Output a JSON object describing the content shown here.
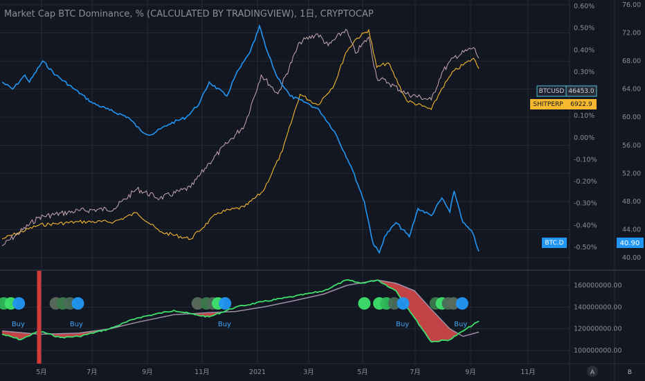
{
  "title": "Market Cap BTC Dominance, % (CALCULATED BY TRADINGVIEW), 1日, CRYPTOCAP",
  "colors": {
    "background": "#131722",
    "grid": "#242833",
    "btc_d": "#2196f3",
    "btcusd": "#c9a9b0",
    "shitperp": "#f5b82e",
    "ma_fast": "#3ee06b",
    "ma_slow": "#9e8fa6",
    "fill_negative": "#e04b4b",
    "signal_red": "#d53a3a"
  },
  "chart_data": [
    {
      "type": "line",
      "title": "Market Cap BTC Dominance, % (CALCULATED BY TRADINGVIEW), 1日, CRYPTOCAP",
      "x_ticks": [
        "5月",
        "7月",
        "9月",
        "11月",
        "2021",
        "3月",
        "5月",
        "7月",
        "9月",
        "11月"
      ],
      "left_axis_ticks": [
        "76.00",
        "72.00",
        "68.00",
        "64.00",
        "60.00",
        "56.00",
        "52.00",
        "48.00",
        "44.00",
        "40.00"
      ],
      "right_axis_ticks": [
        "0.60%",
        "0.50%",
        "0.40%",
        "0.30%",
        "0.20%",
        "0.10%",
        "0.00%",
        "-0.10%",
        "-0.20%",
        "-0.30%",
        "-0.40%",
        "-0.50%"
      ],
      "series": [
        {
          "name": "BTC.D",
          "last_value": "40.90",
          "points": [
            [
              "2020-03-20",
              65.0
            ],
            [
              "2020-04-01",
              64.0
            ],
            [
              "2020-04-15",
              66.0
            ],
            [
              "2020-04-20",
              65.0
            ],
            [
              "2020-05-05",
              68.0
            ],
            [
              "2020-05-20",
              66.0
            ],
            [
              "2020-06-10",
              64.0
            ],
            [
              "2020-07-01",
              62.0
            ],
            [
              "2020-07-20",
              61.0
            ],
            [
              "2020-08-10",
              60.0
            ],
            [
              "2020-08-25",
              58.0
            ],
            [
              "2020-09-05",
              57.5
            ],
            [
              "2020-09-25",
              59.0
            ],
            [
              "2020-10-15",
              60.0
            ],
            [
              "2020-10-30",
              62.0
            ],
            [
              "2020-11-10",
              65.0
            ],
            [
              "2020-11-30",
              63.0
            ],
            [
              "2020-12-10",
              66.0
            ],
            [
              "2020-12-25",
              69.0
            ],
            [
              "2021-01-01",
              71.0
            ],
            [
              "2021-01-06",
              73.0
            ],
            [
              "2021-01-13",
              70.0
            ],
            [
              "2021-01-25",
              66.0
            ],
            [
              "2021-02-10",
              63.0
            ],
            [
              "2021-03-01",
              62.0
            ],
            [
              "2021-03-15",
              61.0
            ],
            [
              "2021-04-01",
              58.0
            ],
            [
              "2021-04-20",
              53.0
            ],
            [
              "2021-05-05",
              48.0
            ],
            [
              "2021-05-15",
              42.0
            ],
            [
              "2021-05-22",
              40.7
            ],
            [
              "2021-05-28",
              43.0
            ],
            [
              "2021-06-10",
              45.0
            ],
            [
              "2021-06-25",
              43.0
            ],
            [
              "2021-07-05",
              47.0
            ],
            [
              "2021-07-20",
              46.0
            ],
            [
              "2021-08-01",
              48.5
            ],
            [
              "2021-08-10",
              46.5
            ],
            [
              "2021-08-15",
              49.5
            ],
            [
              "2021-08-25",
              45.0
            ],
            [
              "2021-09-05",
              43.5
            ],
            [
              "2021-09-12",
              40.9
            ]
          ]
        },
        {
          "name": "BTCUSD",
          "last_value": "46453.0",
          "points": [
            [
              "2020-03-20",
              6500
            ],
            [
              "2020-05-01",
              8800
            ],
            [
              "2020-06-15",
              9400
            ],
            [
              "2020-07-25",
              9600
            ],
            [
              "2020-08-20",
              11800
            ],
            [
              "2020-09-15",
              10700
            ],
            [
              "2020-10-20",
              12000
            ],
            [
              "2020-11-10",
              15500
            ],
            [
              "2020-11-30",
              19000
            ],
            [
              "2020-12-20",
              23000
            ],
            [
              "2021-01-08",
              39000
            ],
            [
              "2021-01-27",
              32000
            ],
            [
              "2021-02-21",
              55000
            ],
            [
              "2021-03-13",
              60000
            ],
            [
              "2021-03-25",
              53000
            ],
            [
              "2021-04-14",
              63000
            ],
            [
              "2021-04-25",
              49000
            ],
            [
              "2021-05-10",
              58000
            ],
            [
              "2021-05-19",
              38000
            ],
            [
              "2021-06-01",
              36000
            ],
            [
              "2021-06-22",
              32000
            ],
            [
              "2021-07-20",
              30000
            ],
            [
              "2021-08-01",
              40000
            ],
            [
              "2021-08-15",
              47000
            ],
            [
              "2021-09-06",
              52000
            ],
            [
              "2021-09-12",
              46453
            ]
          ]
        },
        {
          "name": "SHITPERP",
          "last_value": "6922.9",
          "points": [
            [
              "2020-03-20",
              1500
            ],
            [
              "2020-05-01",
              1700
            ],
            [
              "2020-06-15",
              1750
            ],
            [
              "2020-07-25",
              1750
            ],
            [
              "2020-08-20",
              1900
            ],
            [
              "2020-09-15",
              1600
            ],
            [
              "2020-10-20",
              1500
            ],
            [
              "2020-11-20",
              1900
            ],
            [
              "2020-12-20",
              2000
            ],
            [
              "2021-01-10",
              2300
            ],
            [
              "2021-02-01",
              3300
            ],
            [
              "2021-02-21",
              5500
            ],
            [
              "2021-03-13",
              5000
            ],
            [
              "2021-04-01",
              6000
            ],
            [
              "2021-04-14",
              8000
            ],
            [
              "2021-04-25",
              9000
            ],
            [
              "2021-05-10",
              9800
            ],
            [
              "2021-05-19",
              7000
            ],
            [
              "2021-06-01",
              7300
            ],
            [
              "2021-06-22",
              5200
            ],
            [
              "2021-07-20",
              4800
            ],
            [
              "2021-08-01",
              5800
            ],
            [
              "2021-08-15",
              6800
            ],
            [
              "2021-09-06",
              7600
            ],
            [
              "2021-09-12",
              6922.9
            ]
          ]
        }
      ]
    },
    {
      "type": "line",
      "y_ticks": [
        "160000000.00",
        "140000000.00",
        "120000000.00",
        "100000000.00"
      ],
      "series": [
        {
          "points": [
            [
              "2020-03-20",
              115000000
            ],
            [
              "2020-04-10",
              110000000
            ],
            [
              "2020-05-01",
              118000000
            ],
            [
              "2020-05-25",
              112000000
            ],
            [
              "2020-06-15",
              113000000
            ],
            [
              "2020-07-20",
              120000000
            ],
            [
              "2020-08-20",
              130000000
            ],
            [
              "2020-10-01",
              137000000
            ],
            [
              "2020-10-25",
              133000000
            ],
            [
              "2020-11-10",
              131000000
            ],
            [
              "2020-12-10",
              140000000
            ],
            [
              "2021-01-10",
              145000000
            ],
            [
              "2021-02-15",
              150000000
            ],
            [
              "2021-03-20",
              155000000
            ],
            [
              "2021-04-15",
              165000000
            ],
            [
              "2021-05-01",
              162000000
            ],
            [
              "2021-05-20",
              165000000
            ],
            [
              "2021-06-10",
              155000000
            ],
            [
              "2021-07-01",
              130000000
            ],
            [
              "2021-07-20",
              108000000
            ],
            [
              "2021-08-10",
              110000000
            ],
            [
              "2021-08-25",
              118000000
            ],
            [
              "2021-09-12",
              127000000
            ]
          ]
        },
        {
          "points": [
            [
              "2020-03-20",
              118000000
            ],
            [
              "2020-05-01",
              115000000
            ],
            [
              "2020-06-15",
              116000000
            ],
            [
              "2020-07-20",
              120000000
            ],
            [
              "2020-08-20",
              126000000
            ],
            [
              "2020-10-01",
              133000000
            ],
            [
              "2020-11-10",
              135000000
            ],
            [
              "2020-12-10",
              136000000
            ],
            [
              "2021-01-10",
              140000000
            ],
            [
              "2021-02-15",
              146000000
            ],
            [
              "2021-03-20",
              152000000
            ],
            [
              "2021-04-15",
              160000000
            ],
            [
              "2021-05-20",
              165000000
            ],
            [
              "2021-06-10",
              162000000
            ],
            [
              "2021-07-01",
              155000000
            ],
            [
              "2021-07-20",
              138000000
            ],
            [
              "2021-08-10",
              120000000
            ],
            [
              "2021-08-25",
              113000000
            ],
            [
              "2021-09-12",
              117000000
            ]
          ]
        }
      ],
      "signals": [
        {
          "label": "Buy",
          "date": "2020-04-05"
        },
        {
          "label": "Buy",
          "date": "2020-06-10"
        },
        {
          "label": "Buy",
          "date": "2020-11-25"
        },
        {
          "label": "Buy",
          "date": "2021-06-15"
        },
        {
          "label": "Buy",
          "date": "2021-08-20"
        }
      ],
      "dots": [
        {
          "date": "2020-03-10",
          "color": "#5a6b5e"
        },
        {
          "date": "2020-03-22",
          "color": "#2fb85c"
        },
        {
          "date": "2020-03-30",
          "color": "#3ee06b"
        },
        {
          "date": "2020-04-08",
          "color": "#2196f3"
        },
        {
          "date": "2020-05-20",
          "color": "#5a6b5e"
        },
        {
          "date": "2020-05-28",
          "color": "#3a7a4c"
        },
        {
          "date": "2020-06-05",
          "color": "#4a6a58"
        },
        {
          "date": "2020-06-14",
          "color": "#2196f3"
        },
        {
          "date": "2020-10-28",
          "color": "#5a6b5e"
        },
        {
          "date": "2020-11-07",
          "color": "#3a7a4c"
        },
        {
          "date": "2020-11-14",
          "color": "#4a6a58"
        },
        {
          "date": "2020-11-20",
          "color": "#3ee06b"
        },
        {
          "date": "2020-11-28",
          "color": "#2196f3"
        },
        {
          "date": "2021-05-05",
          "color": "#3ee06b"
        },
        {
          "date": "2021-05-22",
          "color": "#3ee06b"
        },
        {
          "date": "2021-05-30",
          "color": "#2fb85c"
        },
        {
          "date": "2021-06-08",
          "color": "#4a6a58"
        },
        {
          "date": "2021-06-18",
          "color": "#2196f3"
        },
        {
          "date": "2021-07-25",
          "color": "#3a7a4c"
        },
        {
          "date": "2021-08-01",
          "color": "#3ee06b"
        },
        {
          "date": "2021-08-08",
          "color": "#4a6a58"
        },
        {
          "date": "2021-08-14",
          "color": "#5a6b5e"
        },
        {
          "date": "2021-08-24",
          "color": "#2196f3"
        }
      ],
      "red_signal": {
        "date": "2020-05-01"
      }
    }
  ],
  "badges": {
    "scale_a": "A",
    "scale_b": "B"
  }
}
